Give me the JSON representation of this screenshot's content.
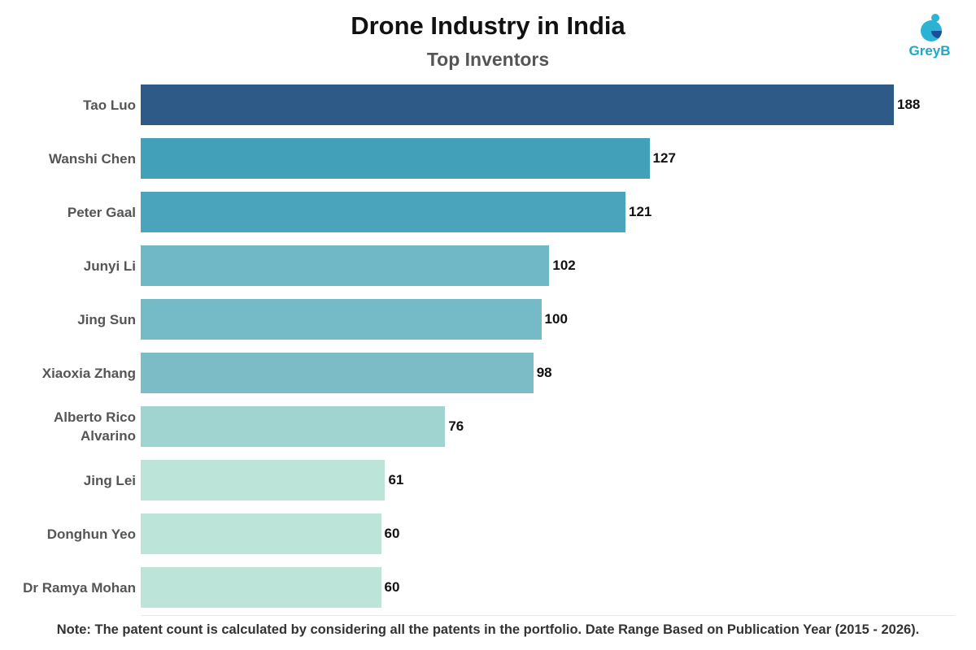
{
  "chart_data": {
    "type": "bar",
    "orientation": "horizontal",
    "title": "Drone Industry in India",
    "subtitle": "Top Inventors",
    "logo": "GreyB",
    "note": "Note: The patent count is calculated by considering all the patents in the portfolio. Date Range Based on Publication Year (2015 - 2026).",
    "categories": [
      "Tao Luo",
      "Wanshi Chen",
      "Peter Gaal",
      "Junyi Li",
      "Jing Sun",
      "Xiaoxia Zhang",
      "Alberto Rico Alvarino",
      "Jing Lei",
      "Donghun Yeo",
      "Dr Ramya Mohan"
    ],
    "values": [
      188,
      127,
      121,
      102,
      100,
      98,
      76,
      61,
      60,
      60
    ],
    "colors": [
      "#2e5a87",
      "#42a0b8",
      "#4aa5bc",
      "#70b8c5",
      "#74bbc7",
      "#7bbcc6",
      "#9fd4d0",
      "#bde4d8",
      "#bde4d8",
      "#bde4d8"
    ]
  }
}
